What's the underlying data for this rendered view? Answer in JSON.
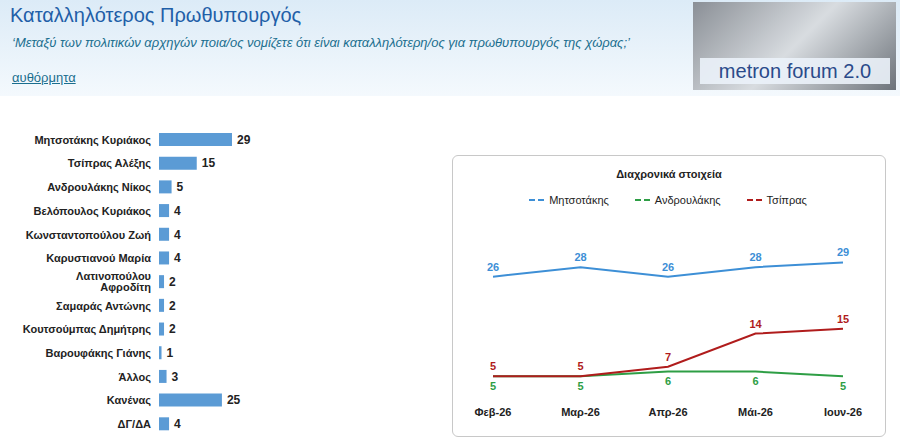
{
  "header": {
    "title": "Καταλληλότερος Πρωθυπουργός",
    "subtitle": "‘Μεταξύ των πολιτικών αρχηγών ποια/ος νομίζετε ότι είναι καταλληλότερη/ος για πρωθυπουργός της χώρας;’",
    "note": "αυθόρμητα",
    "logo": "metron forum 2.0"
  },
  "chart_data": [
    {
      "type": "bar",
      "orientation": "horizontal",
      "categories": [
        "Μητσοτάκης Κυριάκος",
        "Τσίπρας Αλέξης",
        "Ανδρουλάκης Νίκος",
        "Βελόπουλος Κυριάκος",
        "Κωνσταντοπούλου Ζωή",
        "Καρυστιανού Μαρία",
        "Λατινοπούλου Αφροδίτη",
        "Σαμαράς Αντώνης",
        "Κουτσούμπας Δημήτρης",
        "Βαρουφάκης Γιάνης",
        "Άλλος",
        "Κανένας",
        "ΔΓ/ΔΑ"
      ],
      "values": [
        29,
        15,
        5,
        4,
        4,
        4,
        2,
        2,
        2,
        1,
        3,
        25,
        4
      ],
      "color": "#5b9bd5",
      "xlim": [
        0,
        60
      ],
      "data_labels": true,
      "tick_labels": "y"
    },
    {
      "type": "line",
      "title": "Διαχρονικά στοιχεία",
      "categories": [
        "Φεβ-26",
        "Μαρ-26",
        "Απρ-26",
        "Μάι-26",
        "Ιουν-26"
      ],
      "series": [
        {
          "name": "Μητσοτάκης",
          "color": "#3d8fd6",
          "values": [
            26,
            28,
            26,
            28,
            29
          ]
        },
        {
          "name": "Ανδρουλάκης",
          "color": "#2e9e45",
          "values": [
            5,
            5,
            6,
            6,
            5
          ]
        },
        {
          "name": "Τσίπρας",
          "color": "#b01c1c",
          "values": [
            5,
            5,
            7,
            14,
            15
          ]
        }
      ],
      "ylim": [
        0,
        35
      ],
      "legend": "top",
      "data_labels": true,
      "tick_labels": "x"
    }
  ]
}
